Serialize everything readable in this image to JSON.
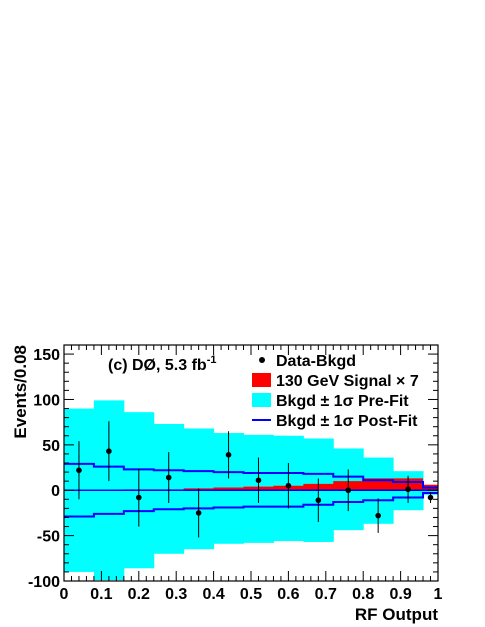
{
  "chart_data": {
    "type": "histogram",
    "experiment_label": "(c) DØ, 5.3 fb",
    "experiment_label_sup": "-1",
    "xlabel": "RF Output",
    "ylabel": "Events/0.08",
    "xlim": [
      0,
      1
    ],
    "ylim": [
      -100,
      160
    ],
    "x_ticks": [
      0,
      0.1,
      0.2,
      0.3,
      0.4,
      0.5,
      0.6,
      0.7,
      0.8,
      0.9,
      1
    ],
    "x_tick_labels": [
      "0",
      "0.1",
      "0.2",
      "0.3",
      "0.4",
      "0.5",
      "0.6",
      "0.7",
      "0.8",
      "0.9",
      "1"
    ],
    "y_ticks": [
      -100,
      -50,
      0,
      50,
      100,
      150
    ],
    "y_tick_labels": [
      "-100",
      "-50",
      "0",
      "50",
      "100",
      "150"
    ],
    "bin_edges": [
      0,
      0.08,
      0.16,
      0.24,
      0.32,
      0.4,
      0.48,
      0.56,
      0.64,
      0.72,
      0.8,
      0.88,
      0.96,
      1.0
    ],
    "prefit_band_upper": [
      90,
      99,
      86,
      73,
      68,
      63,
      61,
      60,
      57,
      46,
      36,
      21,
      5
    ],
    "prefit_band_lower": [
      -90,
      -99,
      -86,
      -70,
      -65,
      -59,
      -58,
      -56,
      -57,
      -44,
      -37,
      -22,
      -5
    ],
    "postfit_band_upper": [
      29,
      26,
      23,
      22,
      21,
      20,
      19,
      19,
      18,
      15,
      11,
      9,
      3
    ],
    "postfit_band_lower": [
      -29,
      -26,
      -23,
      -21,
      -20,
      -19,
      -18,
      -18,
      -16,
      -13,
      -11,
      -8,
      -3
    ],
    "signal_x7": [
      0,
      0,
      1,
      1,
      2,
      3,
      4,
      5,
      7,
      10,
      13,
      13,
      6
    ],
    "data_points": [
      {
        "x": 0.04,
        "y": 22,
        "err": 32
      },
      {
        "x": 0.12,
        "y": 43,
        "err": 33
      },
      {
        "x": 0.2,
        "y": -8,
        "err": 32
      },
      {
        "x": 0.28,
        "y": 14,
        "err": 28
      },
      {
        "x": 0.36,
        "y": -25,
        "err": 27
      },
      {
        "x": 0.44,
        "y": 39,
        "err": 26
      },
      {
        "x": 0.52,
        "y": 11,
        "err": 25
      },
      {
        "x": 0.6,
        "y": 5,
        "err": 25
      },
      {
        "x": 0.68,
        "y": -11,
        "err": 24
      },
      {
        "x": 0.76,
        "y": 0,
        "err": 23
      },
      {
        "x": 0.84,
        "y": -28,
        "err": 19
      },
      {
        "x": 0.92,
        "y": 1,
        "err": 15
      },
      {
        "x": 0.98,
        "y": -8,
        "err": 6
      }
    ],
    "legend_position": "top-right",
    "legend": [
      {
        "label": "Data-Bkgd",
        "kind": "marker",
        "color": "#000000"
      },
      {
        "label": "130 GeV Signal × 7",
        "kind": "fill",
        "color": "#ff0000"
      },
      {
        "label": "Bkgd ± 1σ Pre-Fit",
        "kind": "fill",
        "color": "#00ffff"
      },
      {
        "label": "Bkgd ± 1σ Post-Fit",
        "kind": "line",
        "color": "#0000ff"
      }
    ],
    "colors": {
      "prefit": "#00ffff",
      "postfit": "#0000ff",
      "signal": "#ff0000",
      "data": "#000000",
      "zero_line": "#0000ff"
    }
  }
}
